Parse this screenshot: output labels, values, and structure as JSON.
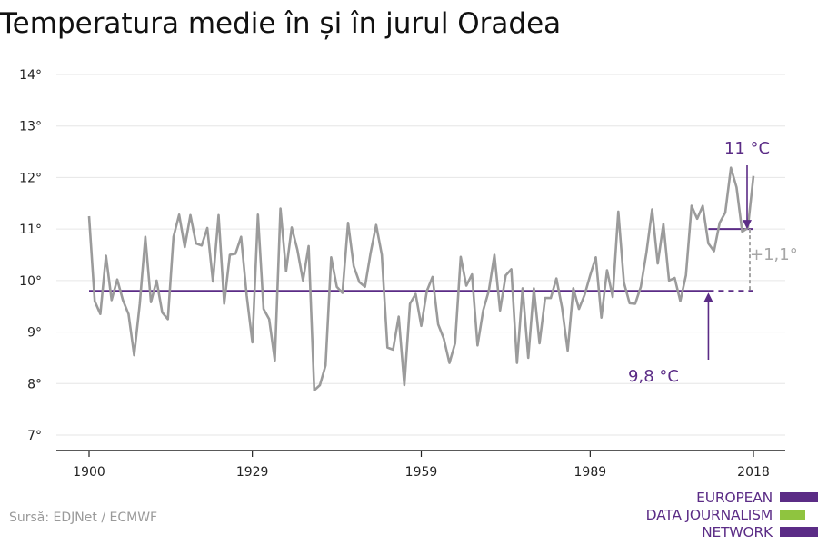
{
  "title": "Temperatura medie în și în jurul Oradea",
  "source": "Sursă: EDJNet / ECMWF",
  "logo": {
    "lines": [
      "EUROPEAN",
      "DATA JOURNALISM",
      "NETWORK"
    ]
  },
  "colors": {
    "series": "#9b9b9b",
    "accent": "#5b2c86",
    "green": "#8fc43f",
    "diff": "#a6a6a6",
    "axis": "#222222",
    "grid": "#e6e6e6"
  },
  "chart_data": {
    "type": "line",
    "title": "Temperatura medie în și în jurul Oradea",
    "xlabel": "",
    "ylabel": "",
    "xlim": [
      1900,
      2018
    ],
    "ylim": [
      7,
      14
    ],
    "x_ticks": [
      1900,
      1929,
      1959,
      1989,
      2018
    ],
    "y_ticks": [
      7,
      8,
      9,
      10,
      11,
      12,
      13,
      14
    ],
    "y_tick_labels": [
      "7°",
      "8°",
      "9°",
      "10°",
      "11°",
      "12°",
      "13°",
      "14°"
    ],
    "grid": true,
    "series": [
      {
        "x": [
          1900,
          1901,
          1902,
          1903,
          1904,
          1905,
          1906,
          1907,
          1908,
          1909,
          1910,
          1911,
          1912,
          1913,
          1914,
          1915,
          1916,
          1917,
          1918,
          1919,
          1920,
          1921,
          1922,
          1923,
          1924,
          1925,
          1926,
          1927,
          1928,
          1929,
          1930,
          1931,
          1932,
          1933,
          1934,
          1935,
          1936,
          1937,
          1938,
          1939,
          1940,
          1941,
          1942,
          1943,
          1944,
          1945,
          1946,
          1947,
          1948,
          1949,
          1950,
          1951,
          1952,
          1953,
          1954,
          1955,
          1956,
          1957,
          1958,
          1959,
          1960,
          1961,
          1962,
          1963,
          1964,
          1965,
          1966,
          1967,
          1968,
          1969,
          1970,
          1971,
          1972,
          1973,
          1974,
          1975,
          1976,
          1977,
          1978,
          1979,
          1980,
          1981,
          1982,
          1983,
          1984,
          1985,
          1986,
          1987,
          1988,
          1989,
          1990,
          1991,
          1992,
          1993,
          1994,
          1995,
          1996,
          1997,
          1998,
          1999,
          2000,
          2001,
          2002,
          2003,
          2004,
          2005,
          2006,
          2007,
          2008,
          2009,
          2010,
          2011,
          2012,
          2013,
          2014,
          2015,
          2016,
          2017,
          2018
        ],
        "values": [
          11.25,
          9.6,
          9.35,
          10.48,
          9.62,
          10.02,
          9.62,
          9.35,
          8.55,
          9.55,
          10.85,
          9.58,
          10.0,
          9.38,
          9.25,
          10.85,
          11.28,
          10.65,
          11.27,
          10.72,
          10.68,
          11.02,
          9.98,
          11.27,
          9.55,
          10.5,
          10.52,
          10.85,
          9.7,
          8.8,
          11.28,
          9.45,
          9.25,
          8.45,
          11.4,
          10.18,
          11.03,
          10.6,
          10.0,
          10.67,
          7.87,
          7.97,
          8.35,
          10.45,
          9.88,
          9.76,
          11.12,
          10.28,
          9.97,
          9.88,
          10.53,
          11.08,
          10.5,
          8.7,
          8.66,
          9.3,
          7.97,
          9.55,
          9.74,
          9.12,
          9.8,
          10.07,
          9.15,
          8.87,
          8.4,
          8.78,
          10.46,
          9.9,
          10.12,
          8.74,
          9.42,
          9.8,
          10.5,
          9.42,
          10.1,
          10.22,
          8.4,
          9.85,
          8.5,
          9.85,
          8.78,
          9.66,
          9.66,
          10.04,
          9.47,
          8.64,
          9.85,
          9.45,
          9.72,
          10.1,
          10.45,
          9.28,
          10.2,
          9.68,
          11.34,
          9.96,
          9.56,
          9.55,
          9.88,
          10.55,
          11.38,
          10.33,
          11.1,
          10.0,
          10.05,
          9.6,
          10.1,
          11.45,
          11.2,
          11.45,
          10.72,
          10.57,
          11.12,
          11.32,
          12.19,
          11.81,
          10.95,
          11.02,
          12.03
        ]
      }
    ],
    "reference_lines": [
      {
        "value": 9.8,
        "from": 1900,
        "to": 2018,
        "solid_to": 2010
      },
      {
        "value": 11.0,
        "from": 2010,
        "to": 2018
      }
    ],
    "annotations": [
      {
        "text": "11 °C",
        "x": 2018,
        "y": 11.0
      },
      {
        "text": "9,8 °C",
        "x": 2010,
        "y": 9.8
      },
      {
        "text": "+1,1°",
        "x": 2018,
        "y": 10.4
      }
    ]
  }
}
